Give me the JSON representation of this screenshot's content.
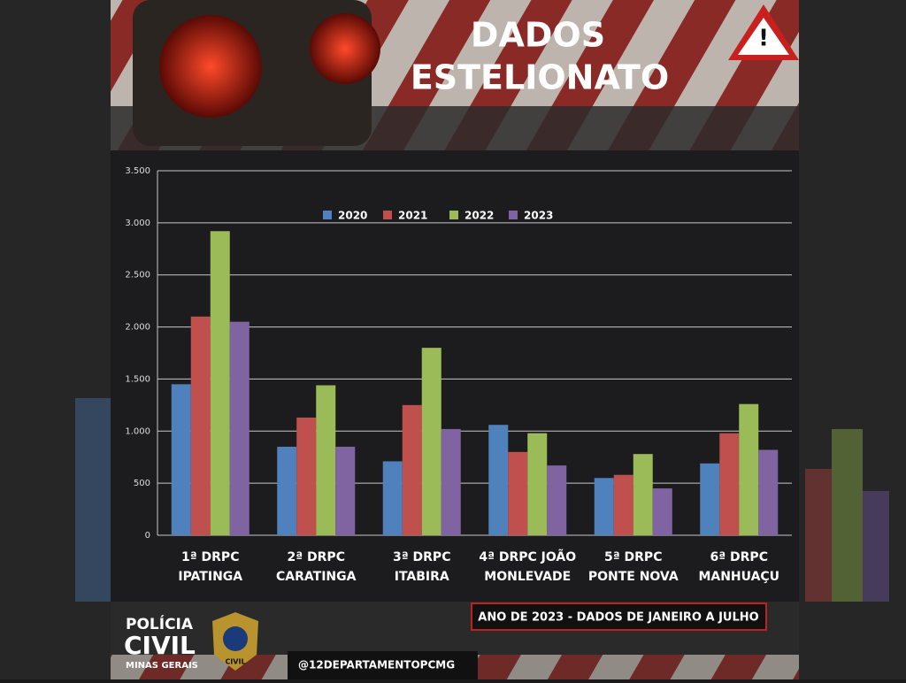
{
  "header": {
    "title_line1": "DADOS",
    "title_line2": "ESTELIONATO"
  },
  "chart_data": {
    "type": "bar",
    "categories": [
      "1ª DRPC IPATINGA",
      "2ª DRPC CARATINGA",
      "3ª DRPC ITABIRA",
      "4ª DRPC JOÃO MONLEVADE",
      "5ª DRPC PONTE NOVA",
      "6ª DRPC MANHUAÇU"
    ],
    "series": [
      {
        "name": "2020",
        "color": "#4f81bd",
        "values": [
          1450,
          850,
          710,
          1060,
          550,
          690
        ]
      },
      {
        "name": "2021",
        "color": "#c0504d",
        "values": [
          2100,
          1130,
          1250,
          800,
          580,
          980
        ]
      },
      {
        "name": "2022",
        "color": "#9bbb59",
        "values": [
          2920,
          1440,
          1800,
          980,
          780,
          1260
        ]
      },
      {
        "name": "2023",
        "color": "#8064a2",
        "values": [
          2050,
          850,
          1020,
          670,
          450,
          820
        ]
      }
    ],
    "ylim": [
      0,
      3500
    ],
    "yticks": [
      0,
      500,
      {
        "value": 1000,
        "label": "1.000"
      },
      {
        "value": 1500,
        "label": "1.500"
      },
      {
        "value": 2000,
        "label": "2.000"
      },
      {
        "value": 2500,
        "label": "2.500"
      },
      {
        "value": 3000,
        "label": "3.000"
      },
      {
        "value": 3500,
        "label": "3.500"
      }
    ],
    "grid": true
  },
  "footer": {
    "org_line1": "POLÍCIA",
    "org_line2": "CIVIL",
    "org_line3": "MINAS GERAIS",
    "badge_text": "CIVIL",
    "note": "ANO DE 2023 - DADOS DE JANEIRO A JULHO",
    "handle": "@12DEPARTAMENTOPCMG"
  }
}
